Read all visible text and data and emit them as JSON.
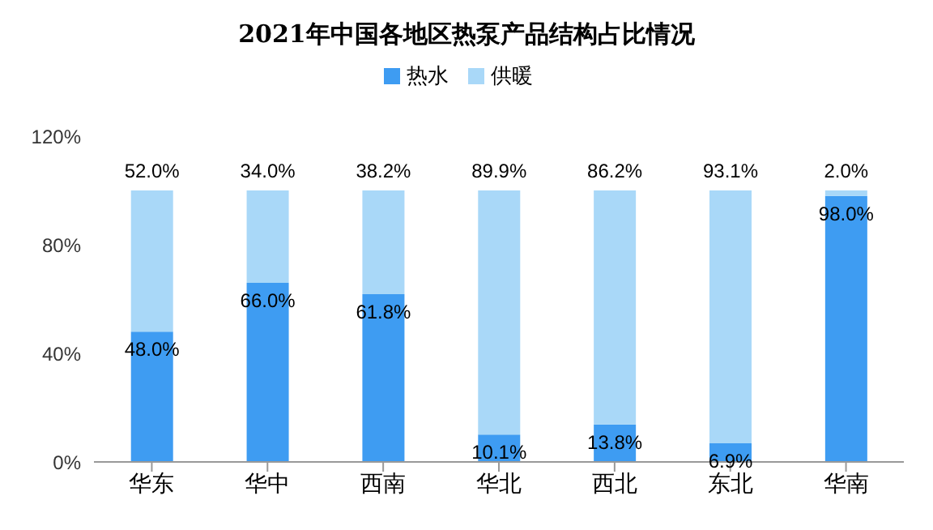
{
  "chart_data": {
    "type": "bar",
    "title": "2021年中国各地区热泵产品结构占比情况",
    "stacked": true,
    "categories": [
      "华东",
      "华中",
      "西南",
      "华北",
      "西北",
      "东北",
      "华南"
    ],
    "series": [
      {
        "name": "热水",
        "color": "#3e9cf2",
        "values": [
          48.0,
          66.0,
          61.8,
          10.1,
          13.8,
          6.9,
          98.0
        ],
        "value_labels": [
          "48.0%",
          "66.0%",
          "61.8%",
          "10.1%",
          "13.8%",
          "6.9%",
          "98.0%"
        ]
      },
      {
        "name": "供暖",
        "color": "#a9d8f8",
        "values": [
          52.0,
          34.0,
          38.2,
          89.9,
          86.2,
          93.1,
          2.0
        ],
        "value_labels": [
          "52.0%",
          "34.0%",
          "38.2%",
          "89.9%",
          "86.2%",
          "93.1%",
          "2.0%"
        ]
      }
    ],
    "ylim": [
      0,
      120
    ],
    "yticks": [
      {
        "value": 0,
        "label": "0%"
      },
      {
        "value": 40,
        "label": "40%"
      },
      {
        "value": 80,
        "label": "80%"
      },
      {
        "value": 120,
        "label": "120%"
      }
    ],
    "grid": false,
    "legend": "top"
  }
}
